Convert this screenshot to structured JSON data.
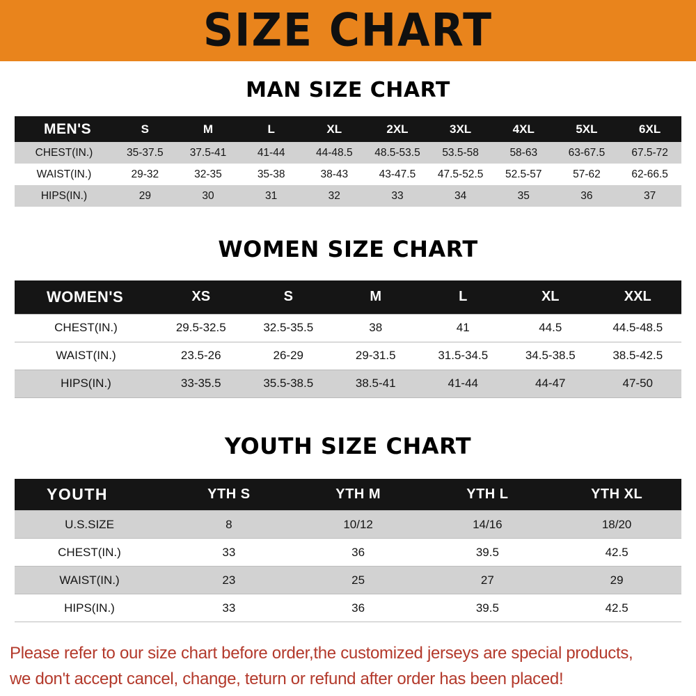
{
  "banner": {
    "title": "SIZE CHART",
    "bg_color": "#E9841C",
    "text_color": "#101010"
  },
  "chart_data": [
    {
      "type": "table",
      "title": "MAN SIZE CHART",
      "header": [
        "MEN'S",
        "S",
        "M",
        "L",
        "XL",
        "2XL",
        "3XL",
        "4XL",
        "5XL",
        "6XL"
      ],
      "rows": [
        [
          "CHEST(IN.)",
          "35-37.5",
          "37.5-41",
          "41-44",
          "44-48.5",
          "48.5-53.5",
          "53.5-58",
          "58-63",
          "63-67.5",
          "67.5-72"
        ],
        [
          "WAIST(IN.)",
          "29-32",
          "32-35",
          "35-38",
          "38-43",
          "43-47.5",
          "47.5-52.5",
          "52.5-57",
          "57-62",
          "62-66.5"
        ],
        [
          "HIPS(IN.)",
          "29",
          "30",
          "31",
          "32",
          "33",
          "34",
          "35",
          "36",
          "37"
        ]
      ]
    },
    {
      "type": "table",
      "title": "WOMEN SIZE CHART",
      "header": [
        "WOMEN'S",
        "XS",
        "S",
        "M",
        "L",
        "XL",
        "XXL"
      ],
      "rows": [
        [
          "CHEST(IN.)",
          "29.5-32.5",
          "32.5-35.5",
          "38",
          "41",
          "44.5",
          "44.5-48.5"
        ],
        [
          "WAIST(IN.)",
          "23.5-26",
          "26-29",
          "29-31.5",
          "31.5-34.5",
          "34.5-38.5",
          "38.5-42.5"
        ],
        [
          "HIPS(IN.)",
          "33-35.5",
          "35.5-38.5",
          "38.5-41",
          "41-44",
          "44-47",
          "47-50"
        ]
      ]
    },
    {
      "type": "table",
      "title": "YOUTH SIZE CHART",
      "header": [
        "YOUTH",
        "YTH S",
        "YTH M",
        "YTH L",
        "YTH XL"
      ],
      "rows": [
        [
          "U.S.SIZE",
          "8",
          "10/12",
          "14/16",
          "18/20"
        ],
        [
          "CHEST(IN.)",
          "33",
          "36",
          "39.5",
          "42.5"
        ],
        [
          "WAIST(IN.)",
          "23",
          "25",
          "27",
          "29"
        ],
        [
          "HIPS(IN.)",
          "33",
          "36",
          "39.5",
          "42.5"
        ]
      ]
    }
  ],
  "footer": {
    "line1": "Please refer to our size chart before order,the customized jerseys are special products,",
    "line2": "we don't accept cancel, change, teturn or refund after order has been placed!",
    "text_color": "#B3392B"
  }
}
